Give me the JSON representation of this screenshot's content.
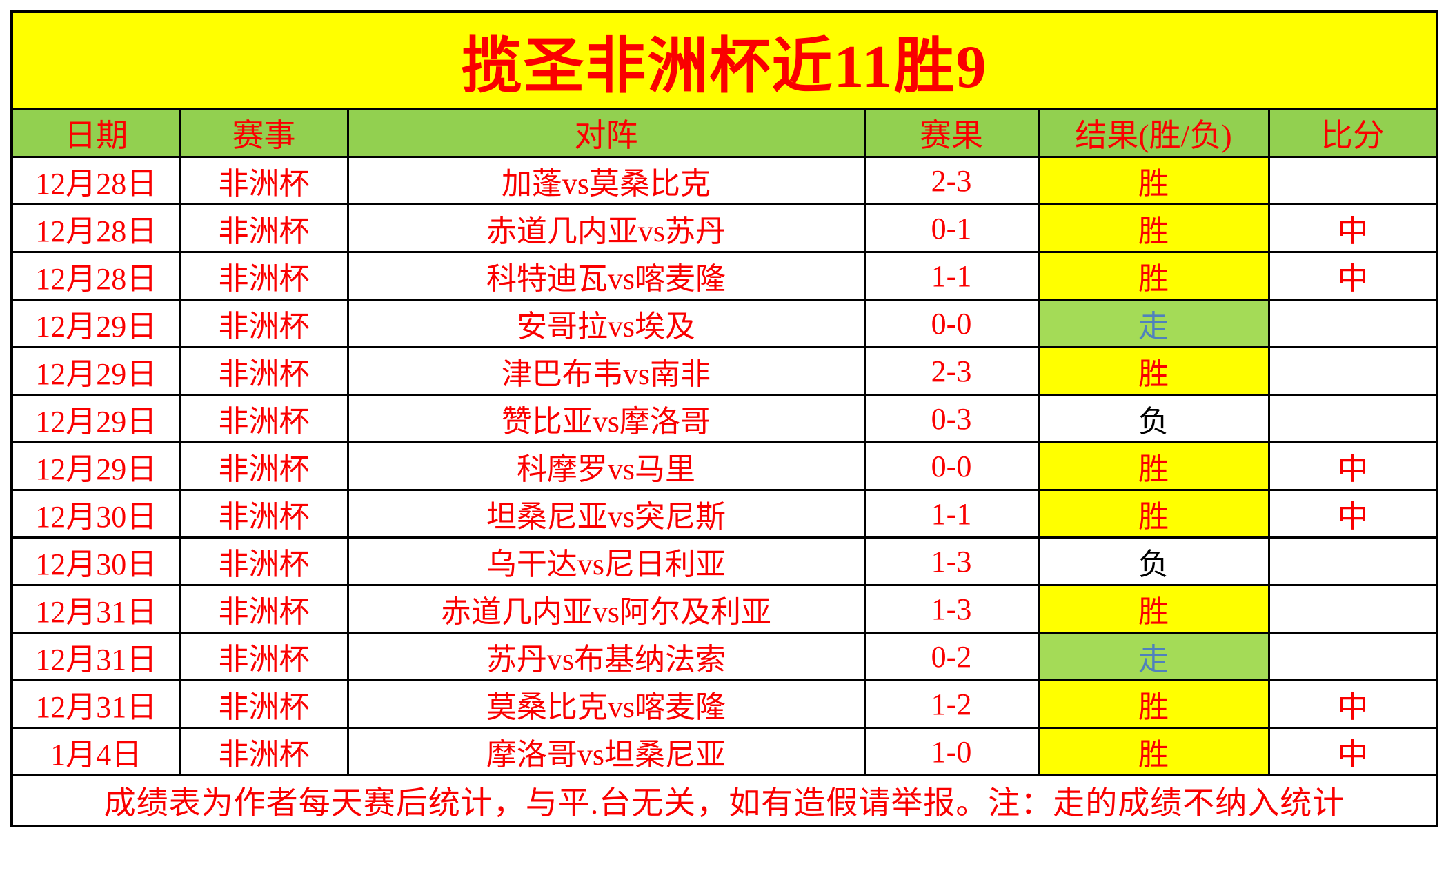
{
  "title": "揽圣非洲杯近11胜9",
  "columns": [
    "日期",
    "赛事",
    "对阵",
    "赛果",
    "结果(胜/负)",
    "比分"
  ],
  "rows": [
    {
      "date": "12月28日",
      "event": "非洲杯",
      "match": "加蓬vs莫桑比克",
      "score": "2-3",
      "result": "胜",
      "result_type": "win",
      "hit": ""
    },
    {
      "date": "12月28日",
      "event": "非洲杯",
      "match": "赤道几内亚vs苏丹",
      "score": "0-1",
      "result": "胜",
      "result_type": "win",
      "hit": "中"
    },
    {
      "date": "12月28日",
      "event": "非洲杯",
      "match": "科特迪瓦vs喀麦隆",
      "score": "1-1",
      "result": "胜",
      "result_type": "win",
      "hit": "中"
    },
    {
      "date": "12月29日",
      "event": "非洲杯",
      "match": "安哥拉vs埃及",
      "score": "0-0",
      "result": "走",
      "result_type": "walk",
      "hit": ""
    },
    {
      "date": "12月29日",
      "event": "非洲杯",
      "match": "津巴布韦vs南非",
      "score": "2-3",
      "result": "胜",
      "result_type": "win",
      "hit": ""
    },
    {
      "date": "12月29日",
      "event": "非洲杯",
      "match": "赞比亚vs摩洛哥",
      "score": "0-3",
      "result": "负",
      "result_type": "loss",
      "hit": ""
    },
    {
      "date": "12月29日",
      "event": "非洲杯",
      "match": "科摩罗vs马里",
      "score": "0-0",
      "result": "胜",
      "result_type": "win",
      "hit": "中"
    },
    {
      "date": "12月30日",
      "event": "非洲杯",
      "match": "坦桑尼亚vs突尼斯",
      "score": "1-1",
      "result": "胜",
      "result_type": "win",
      "hit": "中"
    },
    {
      "date": "12月30日",
      "event": "非洲杯",
      "match": "乌干达vs尼日利亚",
      "score": "1-3",
      "result": "负",
      "result_type": "loss",
      "hit": ""
    },
    {
      "date": "12月31日",
      "event": "非洲杯",
      "match": "赤道几内亚vs阿尔及利亚",
      "score": "1-3",
      "result": "胜",
      "result_type": "win",
      "hit": ""
    },
    {
      "date": "12月31日",
      "event": "非洲杯",
      "match": "苏丹vs布基纳法索",
      "score": "0-2",
      "result": "走",
      "result_type": "walk",
      "hit": ""
    },
    {
      "date": "12月31日",
      "event": "非洲杯",
      "match": "莫桑比克vs喀麦隆",
      "score": "1-2",
      "result": "胜",
      "result_type": "win",
      "hit": "中"
    },
    {
      "date": "1月4日",
      "event": "非洲杯",
      "match": "摩洛哥vs坦桑尼亚",
      "score": "1-0",
      "result": "胜",
      "result_type": "win",
      "hit": "中"
    }
  ],
  "footer": "成绩表为作者每天赛后统计，与平.台无关，如有造假请举报。注：走的成绩不纳入统计",
  "colors": {
    "title_bg": "#ffff00",
    "header_bg": "#92d050",
    "win_bg": "#ffff00",
    "walk_bg": "#a4db57",
    "loss_bg": "#ffffff",
    "main_text": "#fa0000",
    "walk_text": "#4f81bd",
    "loss_text": "#000000",
    "border": "#000000"
  }
}
